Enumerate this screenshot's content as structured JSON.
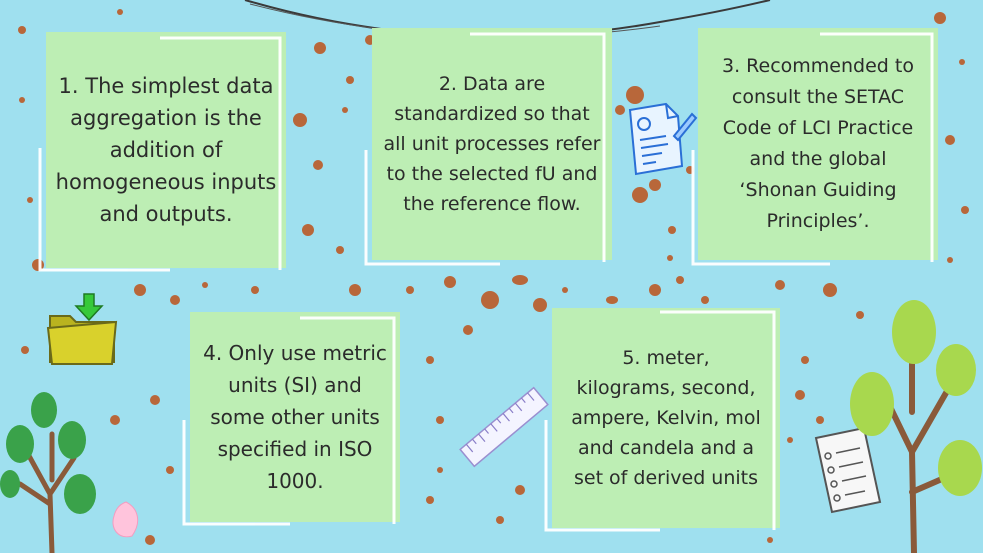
{
  "cards": [
    {
      "text": "1. The simplest data aggregation is the addition of homogeneous inputs and outputs."
    },
    {
      "text": "2. Data are standardized so that all unit processes refer to the selected fU and the reference flow."
    },
    {
      "text": "3. Recommended to consult the SETAC Code of LCI Practice and the global ‘Shonan Guiding Principles’."
    },
    {
      "text": "4. Only use metric units (SI) and some other units specified in ISO 1000."
    },
    {
      "text": "5. meter, kilograms, second, ampere, Kelvin, mol and candela and a set of derived units"
    }
  ],
  "colors": {
    "background": "#9fe0ef",
    "card": "#bdeeb4",
    "splatter": "#b8673a",
    "tree_trunk": "#8a5a3a",
    "leaf_dark": "#3aa24a",
    "leaf_light": "#a8d84e"
  },
  "icons": [
    "folder-download-icon",
    "document-pen-icon",
    "ruler-icon",
    "checklist-icon",
    "tree-icon"
  ]
}
